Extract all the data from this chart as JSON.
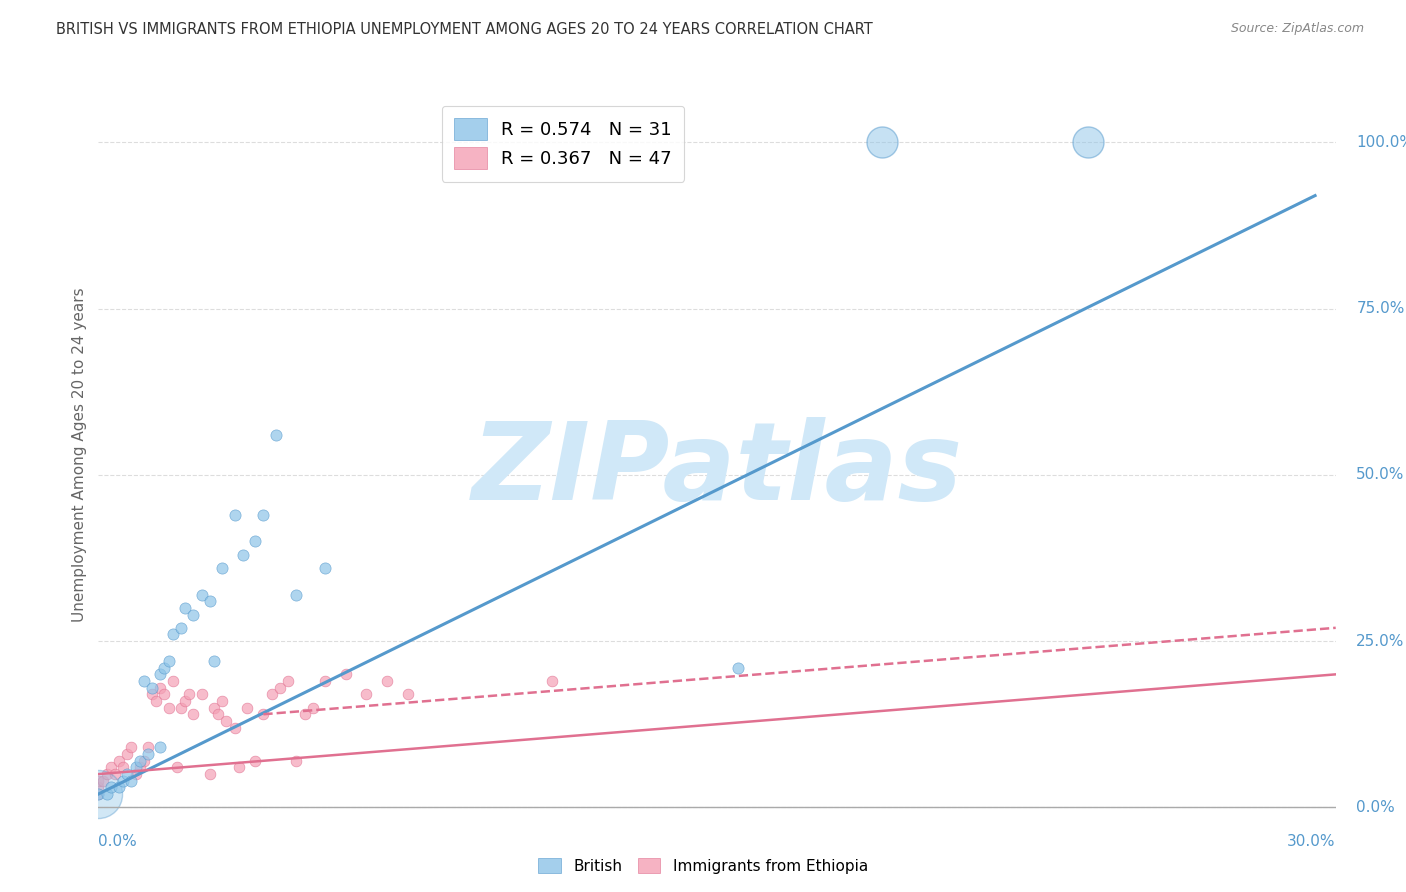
{
  "title": "BRITISH VS IMMIGRANTS FROM ETHIOPIA UNEMPLOYMENT AMONG AGES 20 TO 24 YEARS CORRELATION CHART",
  "source": "Source: ZipAtlas.com",
  "ylabel": "Unemployment Among Ages 20 to 24 years",
  "xlim": [
    0.0,
    0.3
  ],
  "ylim": [
    -0.02,
    1.08
  ],
  "right_yticks": [
    0.0,
    0.25,
    0.5,
    0.75,
    1.0
  ],
  "right_yticklabels": [
    "0.0%",
    "25.0%",
    "50.0%",
    "75.0%",
    "100.0%"
  ],
  "legend_entries": [
    {
      "label": "R = 0.574   N = 31",
      "color": "#8ec4e8"
    },
    {
      "label": "R = 0.367   N = 47",
      "color": "#f4a0b5"
    }
  ],
  "watermark": "ZIPatlas",
  "watermark_color": "#d0e8f8",
  "british_color": "#8ec4e8",
  "ethiopia_color": "#f4a0b5",
  "british_line_color": "#5599cc",
  "ethiopia_line_color": "#e07090",
  "british_scatter": {
    "x": [
      0.0,
      0.002,
      0.003,
      0.005,
      0.006,
      0.007,
      0.008,
      0.009,
      0.01,
      0.011,
      0.012,
      0.013,
      0.015,
      0.015,
      0.016,
      0.017,
      0.018,
      0.02,
      0.021,
      0.023,
      0.025,
      0.027,
      0.028,
      0.03,
      0.033,
      0.035,
      0.038,
      0.04,
      0.043,
      0.048,
      0.055
    ],
    "y": [
      0.02,
      0.02,
      0.03,
      0.03,
      0.04,
      0.05,
      0.04,
      0.06,
      0.07,
      0.19,
      0.08,
      0.18,
      0.09,
      0.2,
      0.21,
      0.22,
      0.26,
      0.27,
      0.3,
      0.29,
      0.32,
      0.31,
      0.22,
      0.36,
      0.44,
      0.38,
      0.4,
      0.44,
      0.56,
      0.32,
      0.36
    ]
  },
  "british_scatter_outliers": {
    "x": [
      0.155,
      0.19,
      0.24
    ],
    "y": [
      0.21,
      1.0,
      1.0
    ]
  },
  "ethiopia_scatter": {
    "x": [
      0.0,
      0.0,
      0.0,
      0.001,
      0.002,
      0.003,
      0.004,
      0.005,
      0.006,
      0.007,
      0.008,
      0.009,
      0.01,
      0.011,
      0.012,
      0.013,
      0.014,
      0.015,
      0.016,
      0.017,
      0.018,
      0.019,
      0.02,
      0.021,
      0.022,
      0.023,
      0.025,
      0.027,
      0.028,
      0.029,
      0.03,
      0.031,
      0.033,
      0.034,
      0.036,
      0.038,
      0.04,
      0.042,
      0.044,
      0.046,
      0.048,
      0.05,
      0.052,
      0.055,
      0.06,
      0.065,
      0.07
    ],
    "y": [
      0.02,
      0.03,
      0.04,
      0.04,
      0.05,
      0.06,
      0.05,
      0.07,
      0.06,
      0.08,
      0.09,
      0.05,
      0.06,
      0.07,
      0.09,
      0.17,
      0.16,
      0.18,
      0.17,
      0.15,
      0.19,
      0.06,
      0.15,
      0.16,
      0.17,
      0.14,
      0.17,
      0.05,
      0.15,
      0.14,
      0.16,
      0.13,
      0.12,
      0.06,
      0.15,
      0.07,
      0.14,
      0.17,
      0.18,
      0.19,
      0.07,
      0.14,
      0.15,
      0.19,
      0.2,
      0.17,
      0.19
    ]
  },
  "ethiopia_scatter_outliers": {
    "x": [
      0.075,
      0.11
    ],
    "y": [
      0.17,
      0.19
    ]
  },
  "british_line": {
    "x0": 0.0,
    "x1": 0.295,
    "y0": 0.02,
    "y1": 0.92
  },
  "ethiopia_line": {
    "x0": 0.0,
    "x1": 0.3,
    "y0": 0.05,
    "y1": 0.2
  },
  "ethiopia_dashed_line": {
    "x0": 0.04,
    "x1": 0.3,
    "y0": 0.14,
    "y1": 0.27
  },
  "grid_color": "#dddddd",
  "background_color": "#ffffff"
}
